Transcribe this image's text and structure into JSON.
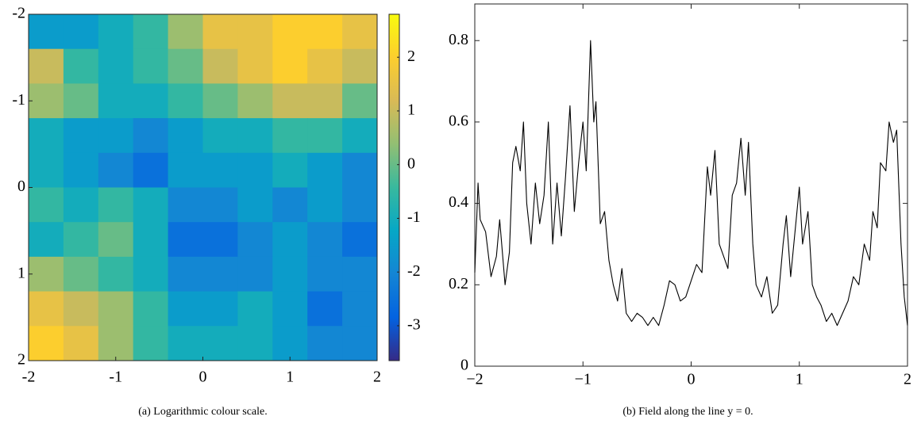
{
  "chart_data": [
    {
      "type": "heatmap",
      "caption": "(a) Logarithmic colour scale.",
      "xlim": [
        -2,
        2
      ],
      "ylim": [
        2,
        -2
      ],
      "xticks": [
        -2,
        -1,
        0,
        1,
        2
      ],
      "yticks": [
        -2,
        -1,
        0,
        1,
        2
      ],
      "z": [
        [
          -1.5,
          -1.5,
          -1,
          -0.5,
          0.5,
          1.5,
          1.5,
          2,
          2,
          1.5
        ],
        [
          1,
          -0.5,
          -1,
          -0.5,
          0,
          1,
          1.5,
          2,
          1.5,
          1
        ],
        [
          0.5,
          0,
          -1,
          -1,
          -0.5,
          0,
          0.5,
          1,
          1,
          0
        ],
        [
          -1,
          -1.5,
          -1.5,
          -2,
          -1.5,
          -1,
          -1,
          -0.5,
          -0.5,
          -1
        ],
        [
          -1,
          -1.5,
          -2,
          -2.5,
          -1.5,
          -1.5,
          -1.5,
          -1,
          -1.5,
          -2
        ],
        [
          -0.5,
          -1,
          -0.5,
          -1,
          -2,
          -2,
          -1.5,
          -2,
          -1.5,
          -2
        ],
        [
          -1,
          -0.5,
          0,
          -1,
          -2.5,
          -2.5,
          -2,
          -1.5,
          -2,
          -2.5
        ],
        [
          0.5,
          0,
          -0.5,
          -1,
          -2,
          -2,
          -2,
          -1.5,
          -2,
          -2
        ],
        [
          1.5,
          1,
          0.5,
          -0.5,
          -1.5,
          -1.5,
          -1,
          -1.5,
          -2.5,
          -2
        ],
        [
          2,
          1.5,
          0.5,
          -0.5,
          -1,
          -1,
          -1,
          -1.5,
          -2,
          -2
        ]
      ],
      "colormap": [
        "#352a87",
        "#0363e1",
        "#1485d4",
        "#06a7c6",
        "#38b99e",
        "#92bf73",
        "#d9ba56",
        "#fcce2e",
        "#f9fb0e"
      ],
      "clim": [
        -3.65,
        2.8
      ],
      "cticks": [
        -3,
        -2,
        -1,
        0,
        1,
        2
      ]
    },
    {
      "type": "line",
      "caption": "(b) Field along the line y = 0.",
      "xlim": [
        -2,
        2
      ],
      "ylim": [
        0,
        0.89
      ],
      "xticks": [
        {
          "value": -2,
          "label": "−2"
        },
        {
          "value": -1,
          "label": "−1"
        },
        0,
        1,
        2
      ],
      "yticks": [
        0,
        0.2,
        0.4,
        0.6,
        0.8
      ],
      "x": [
        -2,
        -1.97,
        -1.95,
        -1.9,
        -1.85,
        -1.8,
        -1.77,
        -1.72,
        -1.68,
        -1.65,
        -1.62,
        -1.58,
        -1.55,
        -1.52,
        -1.48,
        -1.44,
        -1.4,
        -1.36,
        -1.32,
        -1.28,
        -1.24,
        -1.2,
        -1.16,
        -1.12,
        -1.08,
        -1.04,
        -1.0,
        -0.97,
        -0.93,
        -0.9,
        -0.88,
        -0.84,
        -0.8,
        -0.76,
        -0.72,
        -0.68,
        -0.64,
        -0.6,
        -0.55,
        -0.5,
        -0.45,
        -0.4,
        -0.35,
        -0.3,
        -0.25,
        -0.2,
        -0.15,
        -0.1,
        -0.05,
        0,
        0.05,
        0.1,
        0.15,
        0.18,
        0.22,
        0.26,
        0.3,
        0.34,
        0.38,
        0.42,
        0.46,
        0.5,
        0.53,
        0.57,
        0.6,
        0.65,
        0.7,
        0.75,
        0.8,
        0.85,
        0.88,
        0.92,
        0.96,
        1.0,
        1.03,
        1.08,
        1.12,
        1.16,
        1.2,
        1.25,
        1.3,
        1.35,
        1.4,
        1.45,
        1.5,
        1.55,
        1.6,
        1.65,
        1.68,
        1.72,
        1.75,
        1.8,
        1.83,
        1.87,
        1.9,
        1.94,
        1.97,
        2.0
      ],
      "series": [
        {
          "color": "#000000",
          "values": [
            0.23,
            0.45,
            0.36,
            0.33,
            0.22,
            0.27,
            0.36,
            0.2,
            0.28,
            0.5,
            0.54,
            0.48,
            0.6,
            0.4,
            0.3,
            0.45,
            0.35,
            0.42,
            0.6,
            0.3,
            0.45,
            0.32,
            0.47,
            0.64,
            0.38,
            0.5,
            0.6,
            0.48,
            0.8,
            0.6,
            0.65,
            0.35,
            0.38,
            0.26,
            0.2,
            0.16,
            0.24,
            0.13,
            0.11,
            0.13,
            0.12,
            0.1,
            0.12,
            0.1,
            0.15,
            0.21,
            0.2,
            0.16,
            0.17,
            0.21,
            0.25,
            0.23,
            0.49,
            0.42,
            0.53,
            0.3,
            0.27,
            0.24,
            0.42,
            0.45,
            0.56,
            0.42,
            0.55,
            0.3,
            0.2,
            0.17,
            0.22,
            0.13,
            0.15,
            0.3,
            0.37,
            0.22,
            0.33,
            0.44,
            0.3,
            0.38,
            0.2,
            0.17,
            0.15,
            0.11,
            0.13,
            0.1,
            0.13,
            0.16,
            0.22,
            0.2,
            0.3,
            0.26,
            0.38,
            0.34,
            0.5,
            0.48,
            0.6,
            0.55,
            0.58,
            0.3,
            0.17,
            0.1
          ]
        }
      ]
    }
  ]
}
